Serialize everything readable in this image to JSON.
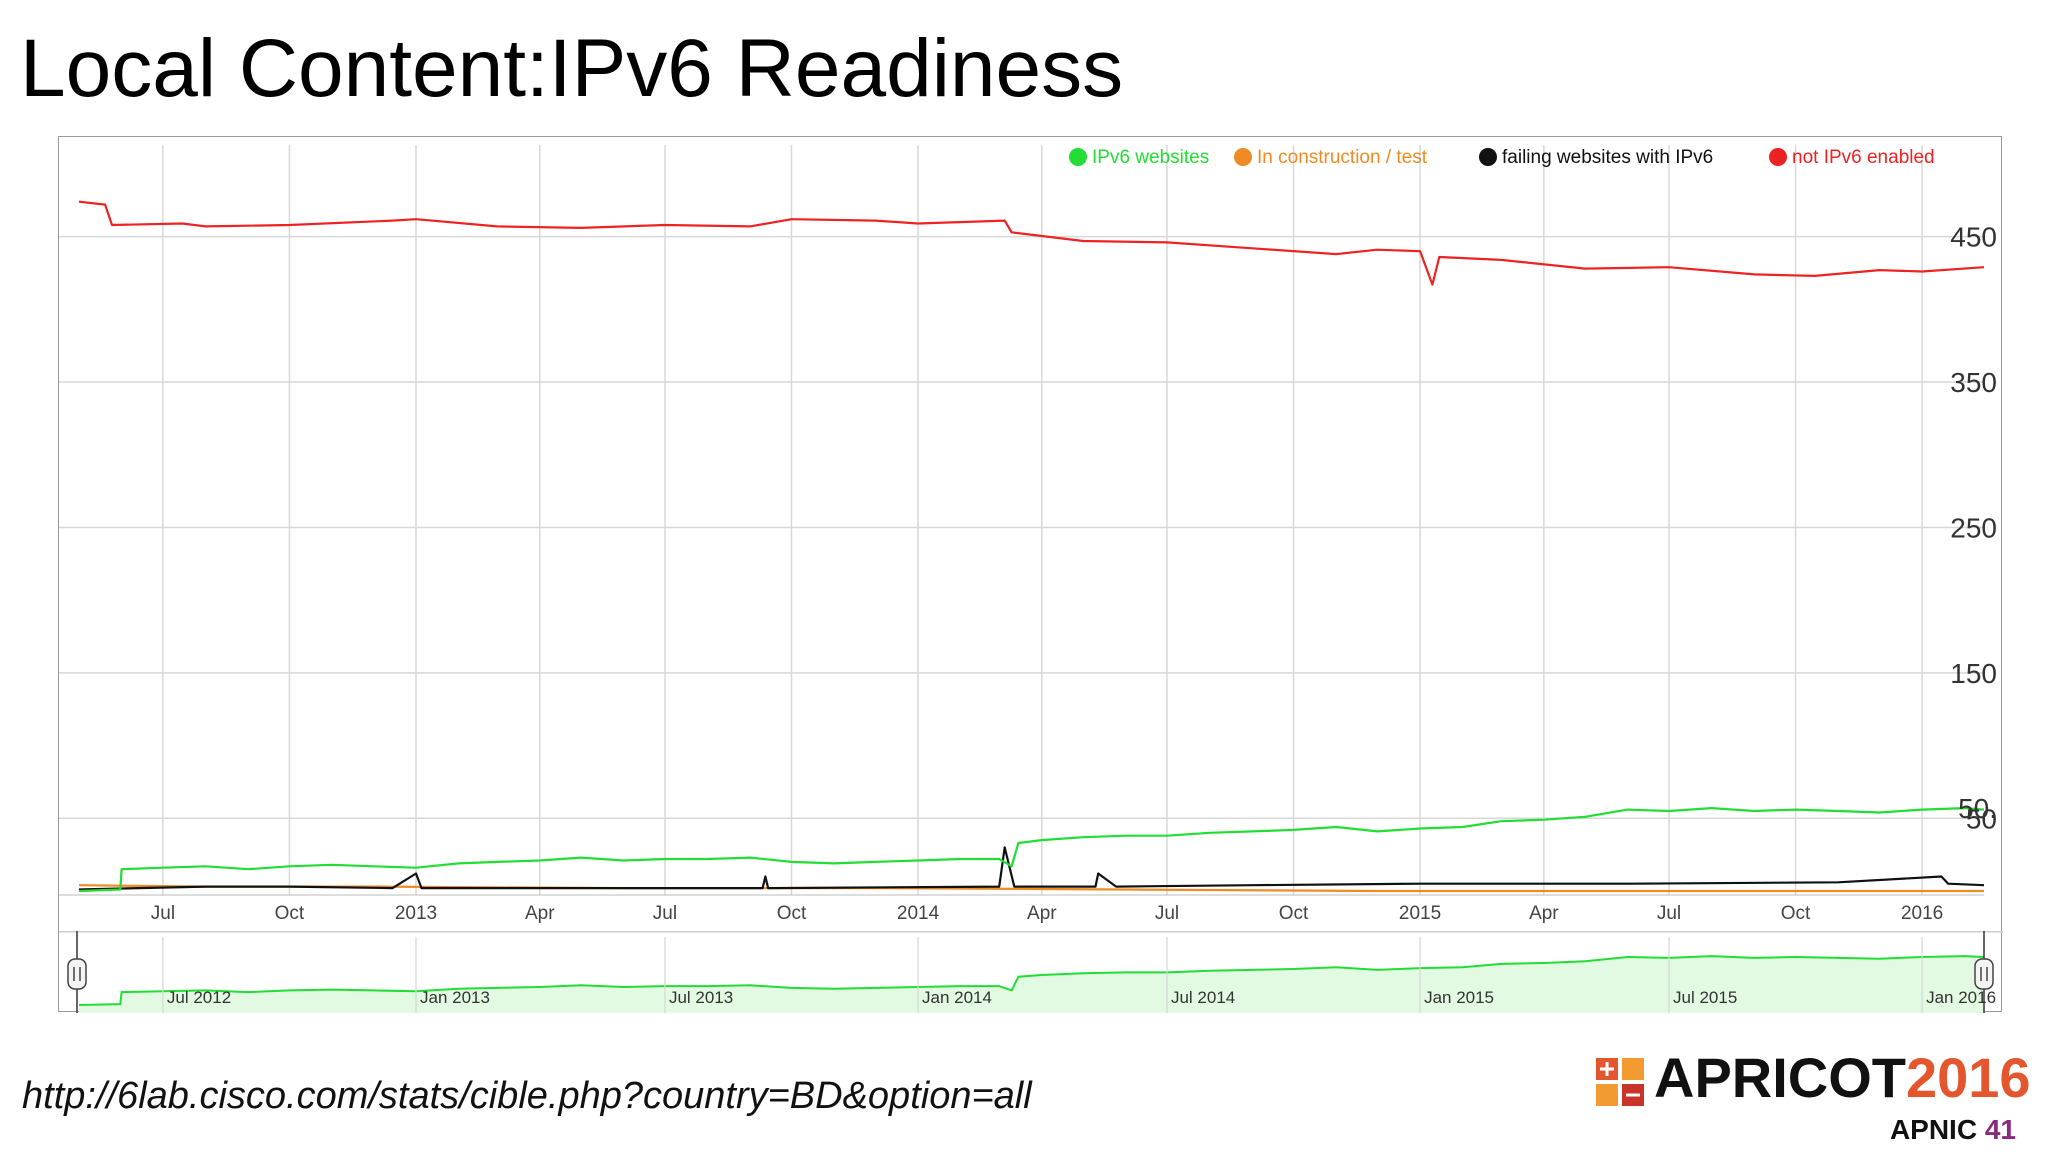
{
  "slide": {
    "title": "Local Content:IPv6 Readiness",
    "source_url": "http://6lab.cisco.com/stats/cible.php?country=BD&option=all"
  },
  "logo": {
    "name": "APRICOT",
    "year": "2016",
    "org": "APNIC",
    "org_number": "41"
  },
  "colors": {
    "ipv6": "#22dd33",
    "construction": "#f08a24",
    "failing": "#111111",
    "not_enabled": "#ee2222",
    "grid": "#d8d8d8",
    "navigator_fill": "#e2f9e2"
  },
  "chart_data": {
    "type": "line",
    "x_axis": "time",
    "x_range": [
      "2012-05-01",
      "2016-02-15"
    ],
    "y_range": [
      0,
      480
    ],
    "y_ticks": [
      50,
      150,
      250,
      350,
      450
    ],
    "x_tick_labels": [
      {
        "date": "2012-07-01",
        "label": "Jul"
      },
      {
        "date": "2012-10-01",
        "label": "Oct"
      },
      {
        "date": "2013-01-01",
        "label": "2013"
      },
      {
        "date": "2013-04-01",
        "label": "Apr"
      },
      {
        "date": "2013-07-01",
        "label": "Jul"
      },
      {
        "date": "2013-10-01",
        "label": "Oct"
      },
      {
        "date": "2014-01-01",
        "label": "2014"
      },
      {
        "date": "2014-04-01",
        "label": "Apr"
      },
      {
        "date": "2014-07-01",
        "label": "Jul"
      },
      {
        "date": "2014-10-01",
        "label": "Oct"
      },
      {
        "date": "2015-01-01",
        "label": "2015"
      },
      {
        "date": "2015-04-01",
        "label": "Apr"
      },
      {
        "date": "2015-07-01",
        "label": "Jul"
      },
      {
        "date": "2015-10-01",
        "label": "Oct"
      },
      {
        "date": "2016-01-01",
        "label": "2016"
      }
    ],
    "navigator_labels": [
      {
        "date": "2012-07-01",
        "label": "Jul 2012"
      },
      {
        "date": "2013-01-01",
        "label": "Jan 2013"
      },
      {
        "date": "2013-07-01",
        "label": "Jul 2013"
      },
      {
        "date": "2014-01-01",
        "label": "Jan 2014"
      },
      {
        "date": "2014-07-01",
        "label": "Jul 2014"
      },
      {
        "date": "2015-01-01",
        "label": "Jan 2015"
      },
      {
        "date": "2015-07-01",
        "label": "Jul 2015"
      },
      {
        "date": "2016-01-01",
        "label": "Jan 2016"
      }
    ],
    "legend_position": "top-right",
    "grid": true,
    "end_label": {
      "date": "2016-02-15",
      "label": "50."
    },
    "series": [
      {
        "name": "IPv6 websites",
        "color_key": "ipv6",
        "points": [
          [
            "2012-05-01",
            0
          ],
          [
            "2012-05-31",
            1
          ],
          [
            "2012-06-01",
            15
          ],
          [
            "2012-07-01",
            16
          ],
          [
            "2012-08-01",
            17
          ],
          [
            "2012-09-01",
            15
          ],
          [
            "2012-10-01",
            17
          ],
          [
            "2012-11-01",
            18
          ],
          [
            "2012-12-01",
            17
          ],
          [
            "2013-01-01",
            16
          ],
          [
            "2013-02-01",
            19
          ],
          [
            "2013-03-01",
            20
          ],
          [
            "2013-04-01",
            21
          ],
          [
            "2013-05-01",
            23
          ],
          [
            "2013-06-01",
            21
          ],
          [
            "2013-07-01",
            22
          ],
          [
            "2013-08-01",
            22
          ],
          [
            "2013-09-01",
            23
          ],
          [
            "2013-10-01",
            20
          ],
          [
            "2013-11-01",
            19
          ],
          [
            "2013-12-01",
            20
          ],
          [
            "2014-01-01",
            21
          ],
          [
            "2014-02-01",
            22
          ],
          [
            "2014-03-01",
            22
          ],
          [
            "2014-03-10",
            17
          ],
          [
            "2014-03-15",
            33
          ],
          [
            "2014-04-01",
            35
          ],
          [
            "2014-05-01",
            37
          ],
          [
            "2014-06-01",
            38
          ],
          [
            "2014-07-01",
            38
          ],
          [
            "2014-08-01",
            40
          ],
          [
            "2014-09-01",
            41
          ],
          [
            "2014-10-01",
            42
          ],
          [
            "2014-11-01",
            44
          ],
          [
            "2014-12-01",
            41
          ],
          [
            "2015-01-01",
            43
          ],
          [
            "2015-02-01",
            44
          ],
          [
            "2015-03-01",
            48
          ],
          [
            "2015-04-01",
            49
          ],
          [
            "2015-05-01",
            51
          ],
          [
            "2015-06-01",
            56
          ],
          [
            "2015-07-01",
            55
          ],
          [
            "2015-08-01",
            57
          ],
          [
            "2015-09-01",
            55
          ],
          [
            "2015-10-01",
            56
          ],
          [
            "2015-11-01",
            55
          ],
          [
            "2015-12-01",
            54
          ],
          [
            "2016-01-01",
            56
          ],
          [
            "2016-02-01",
            57
          ],
          [
            "2016-02-15",
            56
          ]
        ]
      },
      {
        "name": "In construction / test",
        "color_key": "construction",
        "points": [
          [
            "2012-05-01",
            4
          ],
          [
            "2012-08-01",
            3
          ],
          [
            "2012-12-01",
            3
          ],
          [
            "2013-06-01",
            2
          ],
          [
            "2013-12-01",
            2
          ],
          [
            "2014-06-01",
            1
          ],
          [
            "2014-12-01",
            0
          ],
          [
            "2015-06-01",
            0
          ],
          [
            "2015-12-01",
            0
          ],
          [
            "2016-02-15",
            0
          ]
        ]
      },
      {
        "name": "failing websites with IPv6",
        "color_key": "failing",
        "points": [
          [
            "2012-05-01",
            1
          ],
          [
            "2012-08-01",
            3
          ],
          [
            "2012-10-01",
            3
          ],
          [
            "2012-12-15",
            2
          ],
          [
            "2013-01-01",
            12
          ],
          [
            "2013-01-05",
            2
          ],
          [
            "2013-06-01",
            2
          ],
          [
            "2013-09-10",
            2
          ],
          [
            "2013-09-12",
            10
          ],
          [
            "2013-09-14",
            2
          ],
          [
            "2014-03-01",
            3
          ],
          [
            "2014-03-05",
            30
          ],
          [
            "2014-03-12",
            3
          ],
          [
            "2014-05-10",
            3
          ],
          [
            "2014-05-12",
            12
          ],
          [
            "2014-05-25",
            3
          ],
          [
            "2014-09-01",
            4
          ],
          [
            "2015-01-01",
            5
          ],
          [
            "2015-06-01",
            5
          ],
          [
            "2015-11-01",
            6
          ],
          [
            "2016-01-15",
            10
          ],
          [
            "2016-01-20",
            5
          ],
          [
            "2016-02-15",
            4
          ]
        ]
      },
      {
        "name": "not IPv6 enabled",
        "color_key": "not_enabled",
        "points": [
          [
            "2012-05-01",
            474
          ],
          [
            "2012-05-20",
            472
          ],
          [
            "2012-05-25",
            458
          ],
          [
            "2012-07-15",
            459
          ],
          [
            "2012-08-01",
            457
          ],
          [
            "2012-10-01",
            458
          ],
          [
            "2012-12-15",
            461
          ],
          [
            "2013-01-01",
            462
          ],
          [
            "2013-03-01",
            457
          ],
          [
            "2013-05-01",
            456
          ],
          [
            "2013-07-01",
            458
          ],
          [
            "2013-09-01",
            457
          ],
          [
            "2013-10-01",
            462
          ],
          [
            "2013-12-01",
            461
          ],
          [
            "2014-01-01",
            459
          ],
          [
            "2014-03-05",
            461
          ],
          [
            "2014-03-10",
            453
          ],
          [
            "2014-05-01",
            447
          ],
          [
            "2014-07-01",
            446
          ],
          [
            "2014-09-01",
            442
          ],
          [
            "2014-11-01",
            438
          ],
          [
            "2014-12-01",
            441
          ],
          [
            "2015-01-01",
            440
          ],
          [
            "2015-01-10",
            417
          ],
          [
            "2015-01-15",
            436
          ],
          [
            "2015-03-01",
            434
          ],
          [
            "2015-05-01",
            428
          ],
          [
            "2015-07-01",
            429
          ],
          [
            "2015-09-01",
            424
          ],
          [
            "2015-10-15",
            423
          ],
          [
            "2015-12-01",
            427
          ],
          [
            "2016-01-01",
            426
          ],
          [
            "2016-02-15",
            429
          ]
        ]
      }
    ]
  }
}
